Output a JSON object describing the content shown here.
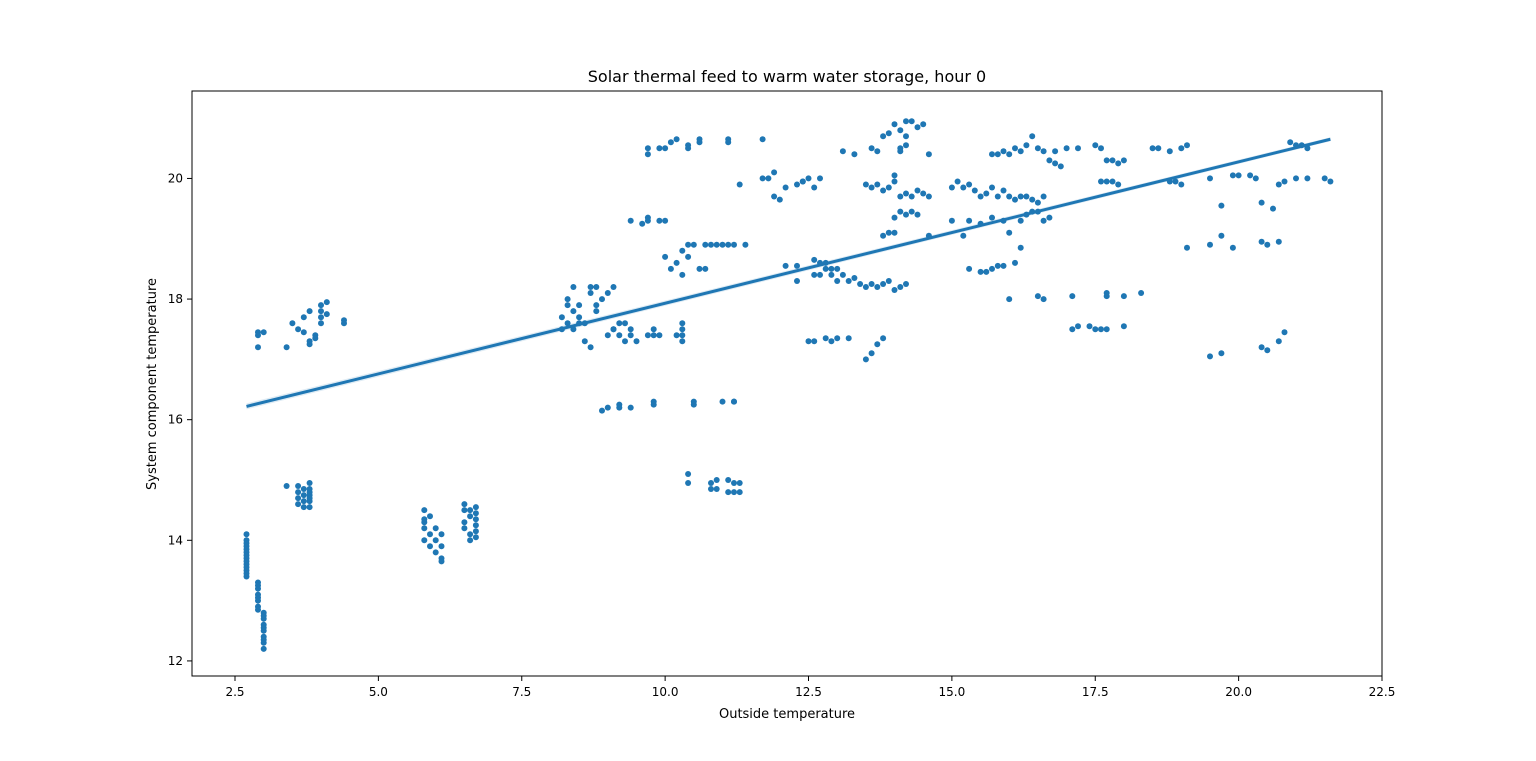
{
  "chart_data": {
    "type": "scatter",
    "title": "Solar thermal feed to warm water storage, hour 0",
    "xlabel": "Outside temperature",
    "ylabel": "System component temperature",
    "xlim": [
      1.75,
      22.5
    ],
    "ylim": [
      11.75,
      21.45
    ],
    "xticks": [
      "2.5",
      "5.0",
      "7.5",
      "10.0",
      "12.5",
      "15.0",
      "17.5",
      "20.0",
      "22.5"
    ],
    "yticks": [
      "12",
      "14",
      "16",
      "18",
      "20"
    ],
    "grid": false,
    "legend": "none",
    "point_color": "#1f77b4",
    "regression_line": {
      "x": [
        2.7,
        21.6
      ],
      "y": [
        16.22,
        20.65
      ],
      "color": "#1f77b4"
    },
    "series": [
      {
        "x": [
          2.7,
          2.7,
          2.7,
          2.7,
          2.7,
          2.7,
          2.7,
          2.7,
          2.7,
          2.7,
          2.7,
          2.7,
          2.7,
          2.7,
          2.9,
          2.9,
          2.9,
          2.9,
          2.9,
          2.9,
          2.9,
          2.9,
          3.0,
          3.0,
          3.0,
          3.0,
          3.0,
          3.0,
          3.0,
          3.0,
          3.0,
          3.0,
          2.9,
          2.9,
          2.9,
          3.0,
          3.4,
          3.5,
          3.6,
          3.7,
          3.7,
          3.8,
          3.8,
          3.9,
          4.0,
          4.0,
          4.0,
          4.0,
          4.1,
          4.1,
          3.8,
          3.9,
          4.4,
          4.4,
          3.4,
          3.6,
          3.6,
          3.6,
          3.6,
          3.7,
          3.7,
          3.7,
          3.7,
          3.8,
          3.8,
          3.8,
          3.8,
          3.8,
          3.8,
          3.8,
          5.8,
          5.8,
          5.8,
          5.8,
          5.9,
          5.9,
          5.9,
          6.0,
          6.0,
          6.0,
          6.1,
          6.1,
          6.1,
          6.1,
          5.8,
          6.5,
          6.5,
          6.5,
          6.5,
          6.6,
          6.6,
          6.6,
          6.6,
          6.7,
          6.7,
          6.7,
          6.7,
          6.7,
          6.7,
          8.2,
          8.2,
          8.3,
          8.3,
          8.4,
          8.4,
          8.5,
          8.5,
          8.3,
          8.4,
          8.5,
          8.6,
          8.7,
          8.7,
          8.8,
          8.8,
          8.9,
          9.0,
          9.0,
          9.1,
          9.1,
          9.2,
          8.6,
          8.7,
          8.8,
          9.1,
          9.2,
          9.3,
          9.3,
          9.4,
          9.4,
          9.5,
          9.7,
          9.8,
          9.8,
          9.9,
          10.2,
          10.3,
          10.3,
          10.3,
          10.3,
          9.4,
          9.6,
          9.7,
          9.7,
          9.9,
          10.0,
          9.7,
          9.7,
          9.9,
          10.0,
          10.1,
          10.2,
          10.4,
          10.4,
          10.6,
          10.6,
          11.1,
          11.1,
          11.7,
          10.0,
          10.1,
          10.2,
          10.3,
          10.3,
          10.4,
          10.4,
          10.5,
          10.6,
          10.7,
          10.7,
          10.8,
          10.9,
          11.0,
          11.1,
          11.2,
          11.4,
          8.9,
          9.0,
          9.2,
          9.2,
          9.4,
          9.8,
          9.8,
          10.5,
          10.5,
          11.0,
          11.2,
          11.2,
          10.4,
          10.4,
          10.8,
          10.8,
          10.9,
          10.9,
          11.1,
          11.1,
          11.2,
          11.2,
          11.3,
          11.3,
          11.3,
          11.7,
          11.8,
          11.9,
          11.9,
          12.0,
          12.1,
          12.3,
          12.4,
          12.4,
          12.5,
          12.6,
          12.7,
          12.1,
          12.3,
          12.3,
          12.6,
          12.6,
          12.7,
          12.7,
          12.8,
          12.8,
          12.9,
          12.9,
          13.0,
          13.0,
          13.1,
          13.2,
          13.3,
          13.4,
          13.5,
          13.6,
          13.7,
          13.8,
          13.9,
          14.0,
          14.1,
          14.2,
          12.5,
          12.6,
          12.8,
          12.9,
          13.0,
          13.2,
          13.5,
          13.6,
          13.7,
          13.8,
          13.8,
          13.9,
          14.0,
          14.0,
          14.1,
          14.2,
          14.3,
          14.4,
          14.6,
          13.5,
          13.6,
          13.7,
          13.8,
          13.9,
          14.0,
          14.0,
          14.1,
          14.2,
          14.3,
          14.4,
          14.5,
          14.6,
          13.7,
          13.8,
          13.9,
          14.0,
          14.1,
          14.2,
          14.2,
          14.3,
          14.4,
          14.5,
          14.1,
          14.2,
          13.6,
          14.1,
          14.6,
          13.1,
          13.3,
          15.0,
          15.1,
          15.2,
          15.3,
          15.4,
          15.5,
          15.6,
          15.7,
          15.8,
          15.9,
          16.0,
          16.1,
          16.2,
          16.3,
          16.4,
          16.5,
          16.6,
          15.0,
          15.2,
          15.3,
          15.5,
          15.7,
          15.9,
          16.0,
          16.2,
          16.3,
          16.4,
          16.5,
          16.6,
          16.7,
          15.3,
          15.5,
          15.6,
          15.7,
          15.8,
          15.9,
          16.1,
          16.2,
          15.7,
          15.8,
          15.9,
          16.0,
          16.1,
          16.2,
          16.3,
          16.4,
          16.5,
          16.6,
          16.7,
          16.8,
          16.9,
          16.0,
          16.5,
          16.6,
          17.1,
          17.7,
          17.7,
          18.0,
          18.3,
          17.1,
          17.2,
          17.4,
          17.5,
          17.6,
          17.7,
          18.0,
          16.8,
          17.0,
          17.2,
          17.5,
          17.6,
          17.7,
          17.8,
          17.9,
          18.0,
          18.5,
          18.6,
          18.8,
          19.0,
          19.1,
          17.6,
          17.7,
          17.8,
          17.9,
          18.8,
          18.9,
          19.0,
          19.5,
          19.7,
          19.9,
          20.0,
          20.2,
          20.3,
          20.4,
          20.6,
          20.7,
          20.8,
          21.0,
          21.2,
          21.5,
          21.6,
          19.1,
          19.5,
          19.7,
          19.9,
          20.4,
          20.5,
          20.7,
          19.5,
          19.7,
          20.4,
          20.5,
          20.7,
          20.8,
          20.9,
          21.0,
          21.1,
          21.2
        ],
        "y": [
          14.1,
          14.0,
          13.9,
          13.8,
          13.7,
          13.6,
          13.5,
          13.4,
          13.95,
          13.85,
          13.75,
          13.65,
          13.55,
          13.45,
          13.3,
          13.2,
          13.1,
          13.0,
          12.9,
          12.85,
          13.25,
          13.05,
          12.8,
          12.7,
          12.6,
          12.5,
          12.4,
          12.3,
          12.2,
          12.75,
          12.55,
          12.35,
          17.45,
          17.4,
          17.2,
          17.45,
          17.2,
          17.6,
          17.5,
          17.7,
          17.45,
          17.8,
          17.3,
          17.4,
          17.9,
          17.7,
          17.6,
          17.8,
          17.95,
          17.75,
          17.25,
          17.35,
          17.65,
          17.6,
          14.9,
          14.9,
          14.8,
          14.7,
          14.6,
          14.85,
          14.75,
          14.65,
          14.55,
          14.95,
          14.85,
          14.75,
          14.65,
          14.55,
          14.8,
          14.7,
          14.5,
          14.3,
          14.2,
          14.0,
          14.4,
          14.1,
          13.9,
          14.2,
          14.0,
          13.8,
          14.1,
          13.9,
          13.7,
          13.65,
          14.35,
          14.6,
          14.5,
          14.3,
          14.2,
          14.5,
          14.4,
          14.1,
          14.0,
          14.55,
          14.45,
          14.35,
          14.25,
          14.15,
          14.05,
          17.7,
          17.5,
          17.9,
          18.0,
          17.8,
          18.2,
          17.9,
          17.7,
          17.6,
          17.5,
          17.6,
          17.3,
          17.2,
          18.2,
          18.2,
          17.8,
          18.0,
          18.1,
          17.4,
          18.2,
          17.5,
          17.4,
          17.6,
          18.1,
          17.9,
          17.5,
          17.6,
          17.6,
          17.3,
          17.4,
          17.5,
          17.3,
          17.4,
          17.5,
          17.4,
          17.4,
          17.4,
          17.6,
          17.5,
          17.4,
          17.3,
          19.3,
          19.25,
          19.3,
          19.35,
          19.3,
          19.3,
          20.5,
          20.4,
          20.5,
          20.5,
          20.6,
          20.65,
          20.55,
          20.5,
          20.6,
          20.65,
          20.6,
          20.65,
          20.65,
          18.7,
          18.5,
          18.6,
          18.8,
          18.4,
          18.9,
          18.7,
          18.9,
          18.5,
          18.5,
          18.9,
          18.9,
          18.9,
          18.9,
          18.9,
          18.9,
          18.9,
          16.15,
          16.2,
          16.25,
          16.2,
          16.2,
          16.3,
          16.25,
          16.3,
          16.25,
          16.3,
          16.3,
          16.3,
          15.1,
          14.95,
          14.95,
          14.85,
          15.0,
          14.85,
          15.0,
          14.8,
          14.95,
          14.8,
          14.95,
          14.8,
          19.9,
          20.0,
          20.0,
          20.1,
          19.7,
          19.65,
          19.85,
          19.9,
          19.95,
          19.95,
          20.0,
          19.85,
          20.0,
          18.55,
          18.55,
          18.3,
          18.65,
          18.4,
          18.6,
          18.4,
          18.5,
          18.6,
          18.5,
          18.4,
          18.5,
          18.3,
          18.4,
          18.3,
          18.35,
          18.25,
          18.2,
          18.25,
          18.2,
          18.25,
          18.3,
          18.15,
          18.2,
          18.25,
          17.3,
          17.3,
          17.35,
          17.3,
          17.35,
          17.35,
          17.0,
          17.1,
          17.25,
          17.35,
          19.05,
          19.1,
          19.1,
          19.35,
          19.45,
          19.4,
          19.45,
          19.4,
          19.05,
          19.9,
          19.85,
          19.9,
          19.8,
          19.85,
          19.95,
          20.05,
          19.7,
          19.75,
          19.7,
          19.8,
          19.75,
          19.7,
          20.45,
          20.7,
          20.75,
          20.9,
          20.8,
          20.95,
          20.7,
          20.95,
          20.85,
          20.9,
          20.5,
          20.55,
          20.5,
          20.45,
          20.4,
          20.45,
          20.4,
          19.85,
          19.95,
          19.85,
          19.9,
          19.8,
          19.7,
          19.75,
          19.85,
          19.7,
          19.8,
          19.7,
          19.65,
          19.7,
          19.7,
          19.65,
          19.6,
          19.7,
          19.3,
          19.05,
          19.3,
          19.25,
          19.35,
          19.3,
          19.1,
          19.3,
          19.4,
          19.45,
          19.45,
          19.3,
          19.35,
          18.5,
          18.45,
          18.45,
          18.5,
          18.55,
          18.55,
          18.6,
          18.85,
          20.4,
          20.4,
          20.45,
          20.4,
          20.5,
          20.45,
          20.55,
          20.7,
          20.5,
          20.45,
          20.3,
          20.25,
          20.2,
          18.0,
          18.05,
          18.0,
          18.05,
          18.1,
          18.05,
          18.05,
          18.1,
          17.5,
          17.55,
          17.55,
          17.5,
          17.5,
          17.5,
          17.55,
          20.45,
          20.5,
          20.5,
          20.55,
          20.5,
          20.3,
          20.3,
          20.25,
          20.3,
          20.5,
          20.5,
          20.45,
          20.5,
          20.55,
          19.95,
          19.95,
          19.95,
          19.9,
          19.95,
          19.95,
          19.9,
          20.0,
          19.55,
          20.05,
          20.05,
          20.05,
          20.0,
          19.6,
          19.5,
          19.9,
          19.95,
          20.0,
          20.0,
          20.0,
          19.95,
          18.85,
          18.9,
          19.05,
          18.85,
          18.95,
          18.9,
          18.95,
          17.05,
          17.1,
          17.2,
          17.15,
          17.3,
          17.45,
          20.6,
          20.55,
          20.55,
          20.5
        ]
      }
    ]
  }
}
